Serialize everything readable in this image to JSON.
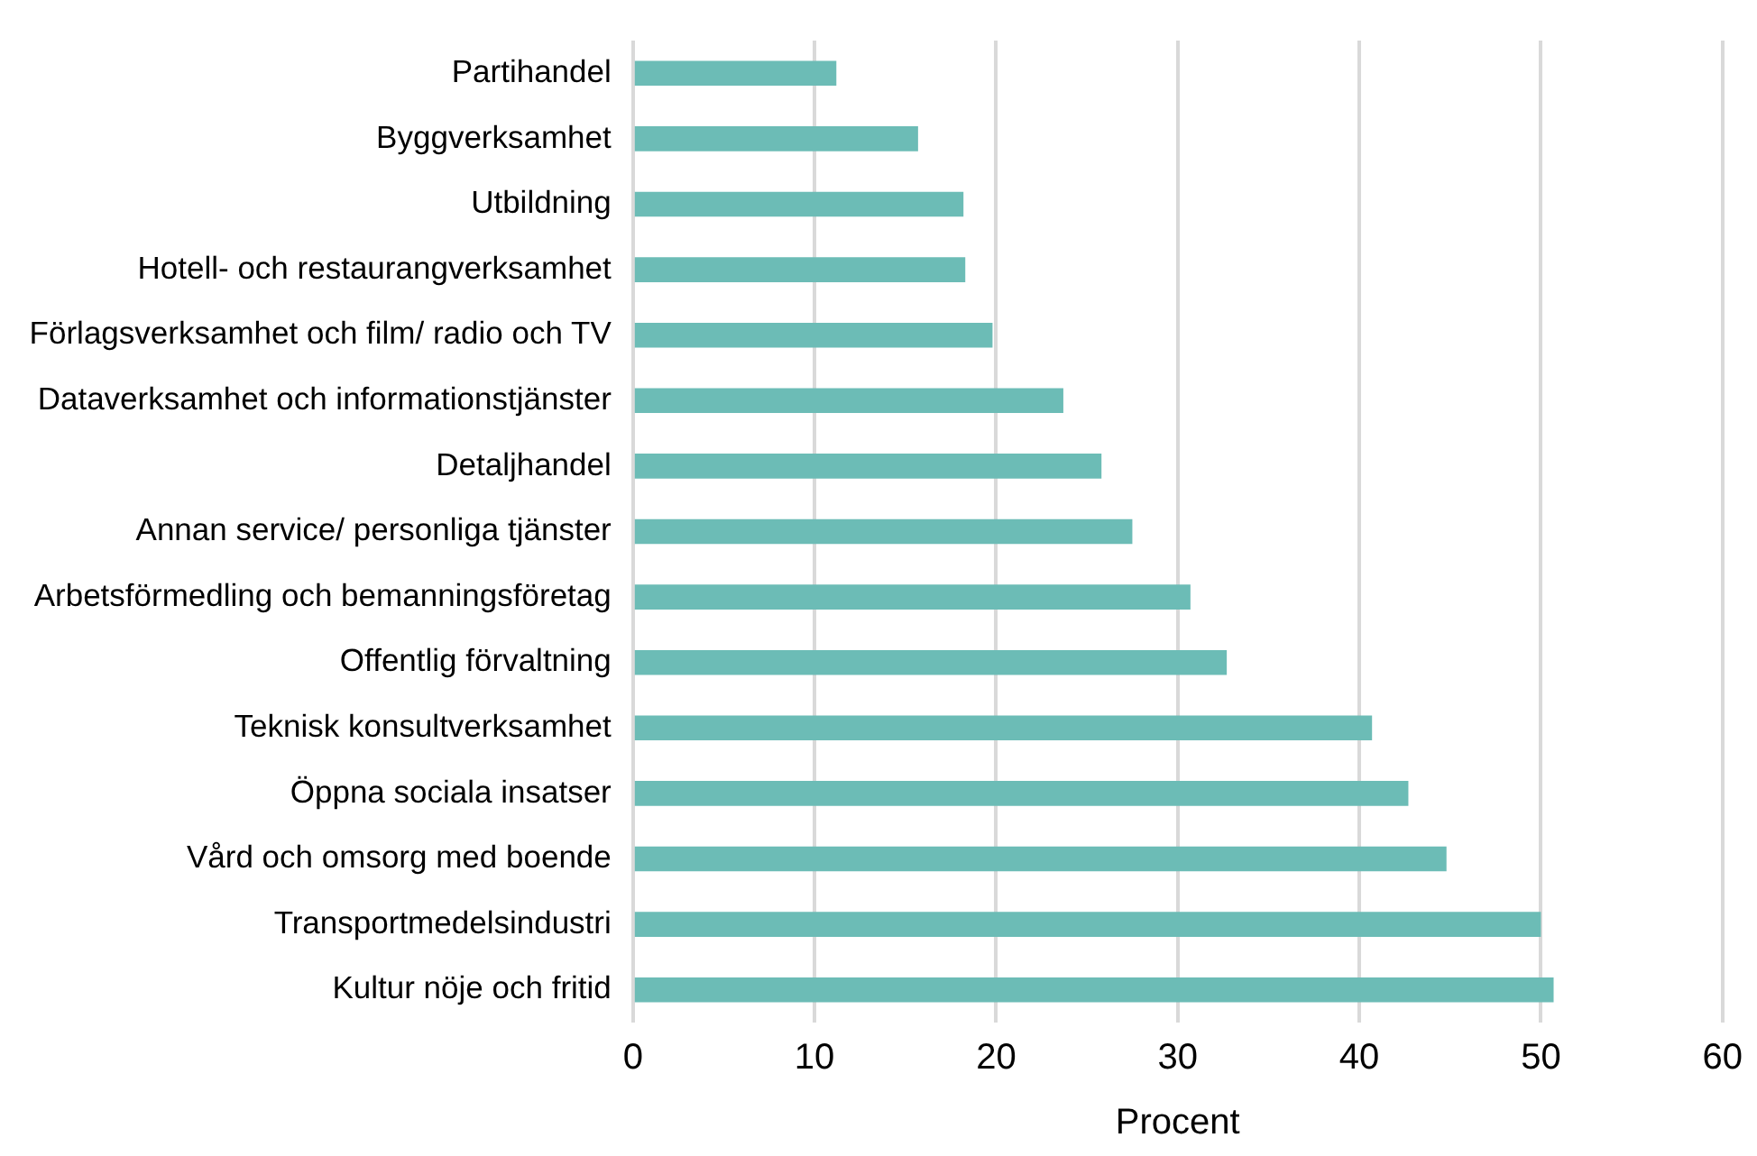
{
  "chart_data": {
    "type": "bar",
    "orientation": "horizontal",
    "xlabel": "Procent",
    "categories": [
      "Partihandel",
      "Byggverksamhet",
      "Utbildning",
      "Hotell- och restaurangverksamhet",
      "Förlagsverksamhet och film/ radio och TV",
      "Dataverksamhet och informationstjänster",
      "Detaljhandel",
      "Annan service/ personliga tjänster",
      "Arbetsförmedling och bemanningsföretag",
      "Offentlig förvaltning",
      "Teknisk konsultverksamhet",
      "Öppna sociala insatser",
      "Vård och omsorg med boende",
      "Transportmedelsindustri",
      "Kultur nöje och fritid"
    ],
    "values": [
      11.2,
      15.7,
      18.2,
      18.3,
      19.8,
      23.7,
      25.8,
      27.5,
      30.7,
      32.7,
      40.7,
      42.7,
      44.8,
      50.0,
      50.7
    ],
    "color": "#6cbcb6",
    "xlim": [
      0,
      60
    ],
    "xticks": [
      0,
      10,
      20,
      30,
      40,
      50,
      60
    ],
    "grid": "x",
    "legend": false
  }
}
